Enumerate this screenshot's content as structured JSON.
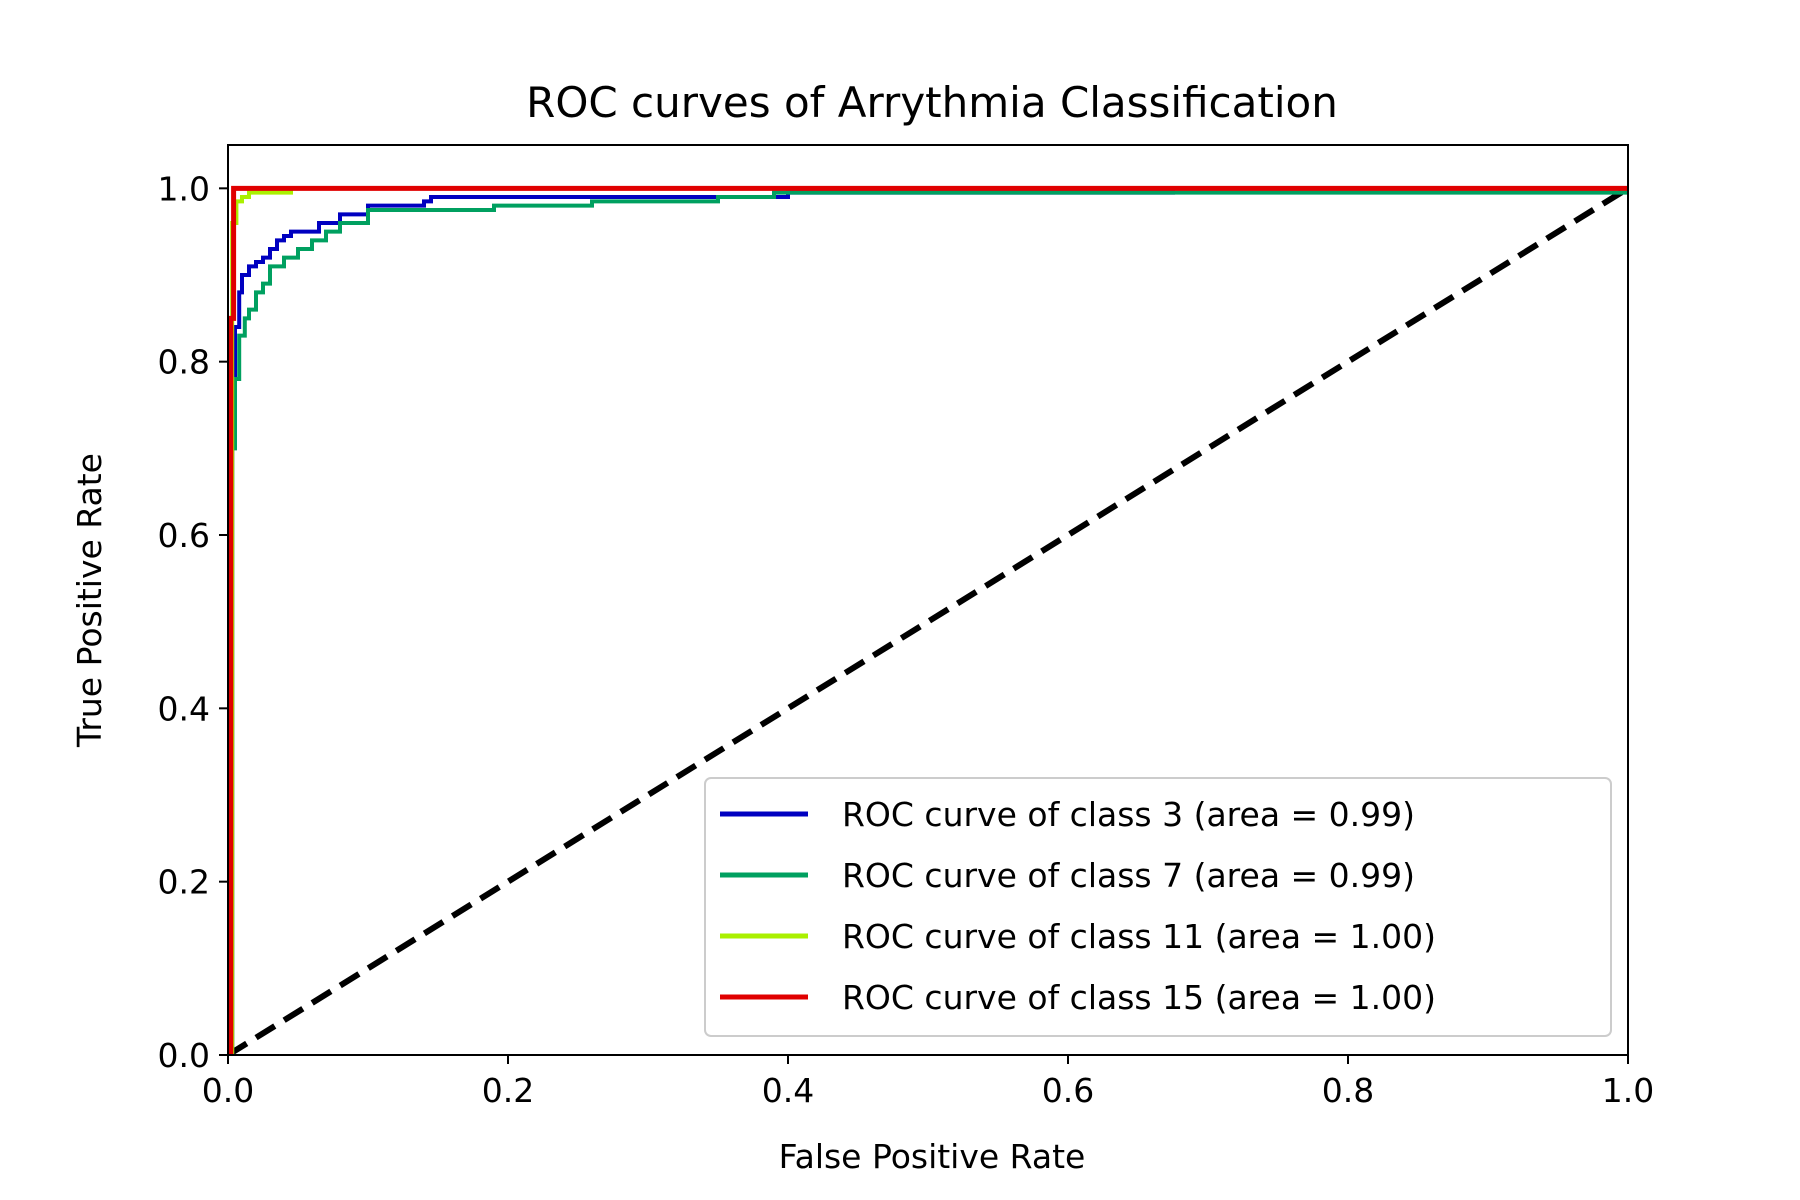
{
  "chart_data": {
    "type": "line",
    "title": "ROC curves of Arrythmia Classification",
    "xlabel": "False Positive Rate",
    "ylabel": "True Positive Rate",
    "xlim": [
      0.0,
      1.0
    ],
    "ylim": [
      0.0,
      1.05
    ],
    "xticks": [
      "0.0",
      "0.2",
      "0.4",
      "0.6",
      "0.8",
      "1.0"
    ],
    "yticks": [
      "0.0",
      "0.2",
      "0.4",
      "0.6",
      "0.8",
      "1.0"
    ],
    "grid": false,
    "legend_position": "lower-right",
    "series": [
      {
        "name": "ROC curve of class 3 (area = 0.99)",
        "color": "#0000c0",
        "x": [
          0,
          0.003,
          0.003,
          0.005,
          0.008,
          0.01,
          0.015,
          0.02,
          0.025,
          0.03,
          0.035,
          0.04,
          0.045,
          0.05,
          0.065,
          0.08,
          0.1,
          0.14,
          0.145,
          0.35,
          0.4,
          0.675,
          0.675,
          1.0
        ],
        "y": [
          0,
          0.01,
          0.71,
          0.84,
          0.88,
          0.9,
          0.91,
          0.915,
          0.92,
          0.93,
          0.94,
          0.945,
          0.95,
          0.95,
          0.96,
          0.97,
          0.98,
          0.985,
          0.99,
          0.99,
          0.995,
          0.995,
          1.0,
          1.0
        ]
      },
      {
        "name": "ROC curve of class 7 (area = 0.99)",
        "color": "#00a060",
        "x": [
          0,
          0.003,
          0.003,
          0.005,
          0.008,
          0.012,
          0.015,
          0.02,
          0.025,
          0.03,
          0.04,
          0.05,
          0.06,
          0.07,
          0.08,
          0.1,
          0.19,
          0.26,
          0.35,
          0.39,
          1.0
        ],
        "y": [
          0,
          0.01,
          0.7,
          0.78,
          0.83,
          0.85,
          0.86,
          0.88,
          0.89,
          0.91,
          0.92,
          0.93,
          0.94,
          0.95,
          0.96,
          0.975,
          0.98,
          0.985,
          0.99,
          0.995,
          1.0
        ]
      },
      {
        "name": "ROC curve of class 11 (area = 1.00)",
        "color": "#aaf000",
        "x": [
          0,
          0.003,
          0.003,
          0.006,
          0.01,
          0.015,
          0.045,
          0.045,
          1.0
        ],
        "y": [
          0,
          0.9,
          0.96,
          0.985,
          0.99,
          0.995,
          0.995,
          1.0,
          1.0
        ]
      },
      {
        "name": "ROC curve of class 15 (area = 1.00)",
        "color": "#e00000",
        "x": [
          0,
          0.002,
          0.004,
          1.0
        ],
        "y": [
          0,
          0.85,
          1.0,
          1.0
        ]
      }
    ],
    "reference_line": {
      "x": [
        0,
        1
      ],
      "y": [
        0,
        1
      ],
      "color": "#000000",
      "style": "dashed"
    }
  }
}
